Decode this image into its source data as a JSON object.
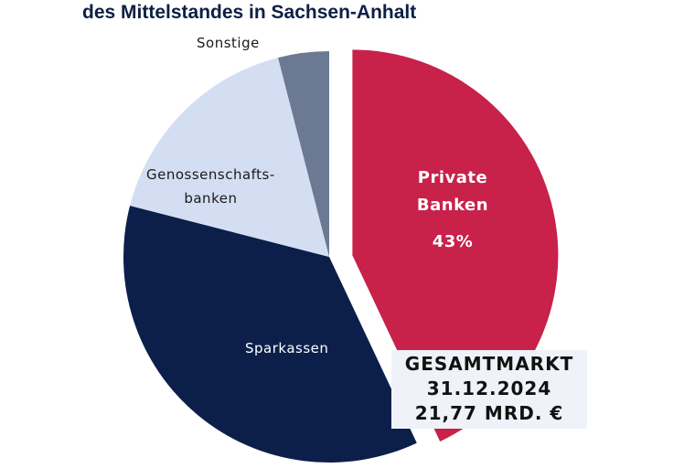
{
  "chart_data": {
    "type": "pie",
    "title": "des Mittelstandes in Sachsen-Anhalt",
    "slices": [
      {
        "label": "Private Banken",
        "label_lines": [
          "Private",
          "Banken"
        ],
        "value": 43,
        "value_label": "43%",
        "color": "#c8214a",
        "exploded": true
      },
      {
        "label": "Sparkassen",
        "label_lines": [
          "Sparkassen"
        ],
        "value": 36,
        "color": "#0c1f4a"
      },
      {
        "label": "Genossenschaftsbanken",
        "label_lines": [
          "Genossenschafts-",
          "banken"
        ],
        "value": 17,
        "color": "#d4def3"
      },
      {
        "label": "Sonstige",
        "label_lines": [
          "Sonstige"
        ],
        "value": 4,
        "color": "#6b7a92"
      }
    ],
    "annotation": [
      "GESAMTMARKT",
      "31.12.2024",
      "21,77 MRD. €"
    ]
  }
}
